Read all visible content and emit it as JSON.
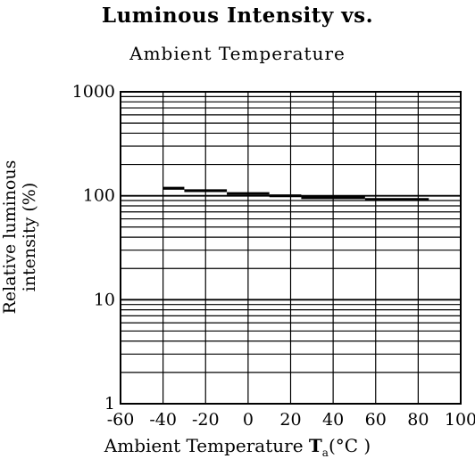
{
  "chart_data": {
    "type": "line",
    "title": "Luminous Intensity vs.",
    "subtitle": "Ambient Temperature",
    "ylabel": "Relative luminous intensity (%)",
    "xlabel": "Ambient Temperature",
    "xlabel_symbol": "T",
    "xlabel_subscript": "a",
    "xlabel_unit": "(°C )",
    "x_ticks": [
      -60,
      -40,
      -20,
      0,
      20,
      40,
      60,
      80,
      100
    ],
    "x_tick_labels": [
      "-60",
      "-40",
      "-20",
      "0",
      "20",
      "40",
      "60",
      "80",
      "100"
    ],
    "y_ticks": [
      1,
      10,
      100,
      1000
    ],
    "y_tick_labels": [
      "1",
      "10",
      "100",
      "1000"
    ],
    "xlim": [
      -60,
      100
    ],
    "ylim": [
      1,
      1000
    ],
    "y_scale": "log",
    "grid": true,
    "series": [
      {
        "x": [
          -40,
          -30,
          -10,
          10,
          25,
          55,
          85
        ],
        "y": [
          118,
          112,
          105,
          100,
          96,
          92,
          85
        ]
      }
    ]
  }
}
